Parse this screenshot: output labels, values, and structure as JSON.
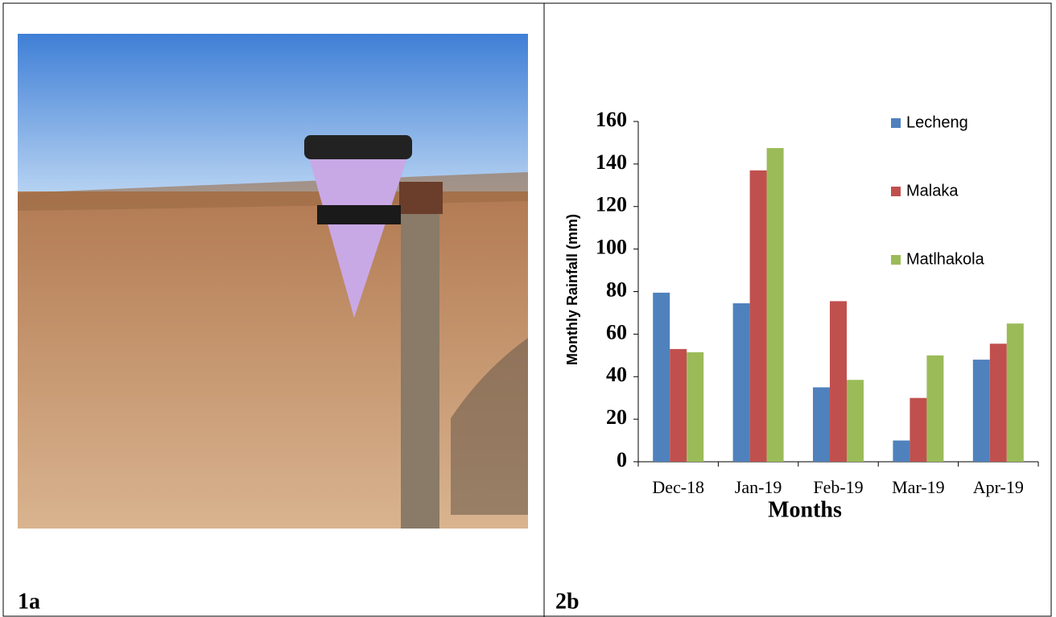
{
  "panels": {
    "left_label": "1a",
    "right_label": "2b"
  },
  "chart_data": {
    "type": "bar",
    "x_label": "Months",
    "y_label": "Monthly  Rainfall (mm)",
    "categories": [
      "Dec-18",
      "Jan-19",
      "Feb-19",
      "Mar-19",
      "Apr-19"
    ],
    "series": [
      {
        "name": "Lecheng",
        "color": "#4f81bd",
        "values": [
          79.5,
          74.5,
          35,
          10,
          48
        ]
      },
      {
        "name": "Malaka",
        "color": "#c0504d",
        "values": [
          53,
          137,
          75.5,
          30,
          55.5
        ]
      },
      {
        "name": "Matlhakola",
        "color": "#9bbb59",
        "values": [
          51.5,
          147.5,
          38.5,
          50,
          65
        ]
      }
    ],
    "ylim": [
      0,
      160
    ],
    "yticks": [
      0,
      20,
      40,
      60,
      80,
      100,
      120,
      140,
      160
    ],
    "grid": false,
    "legend": "right"
  }
}
